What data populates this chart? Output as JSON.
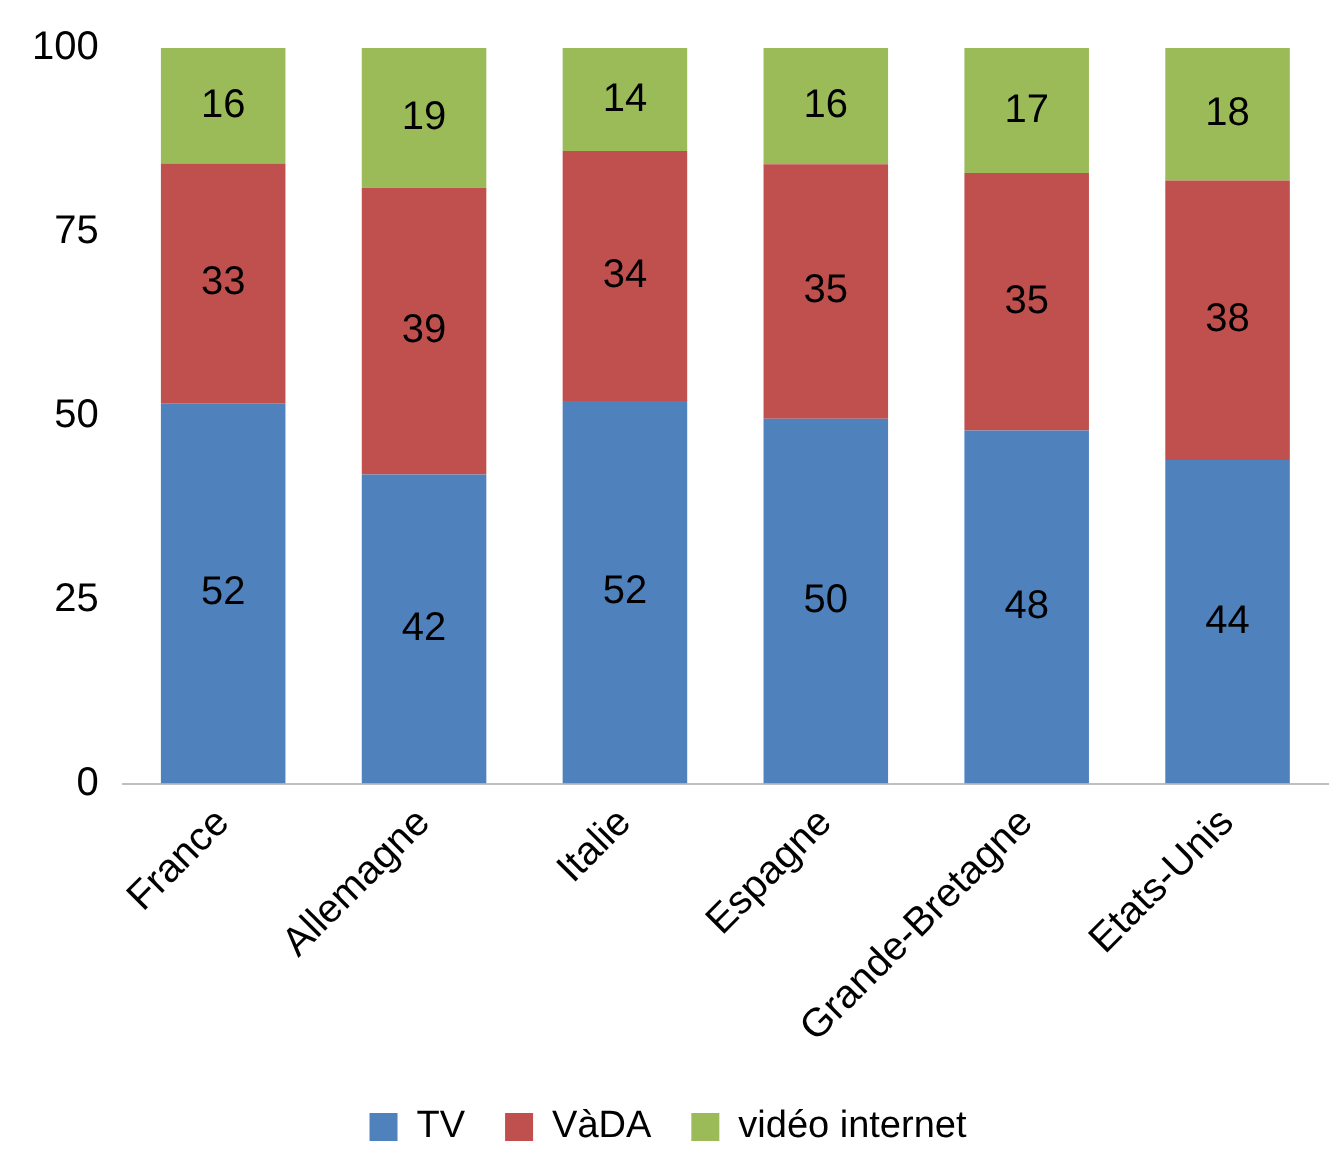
{
  "chart_data": {
    "type": "bar",
    "stacked": true,
    "categories": [
      "France",
      "Allemagne",
      "Italie",
      "Espagne",
      "Grande-Bretagne",
      "Etats-Unis"
    ],
    "series": [
      {
        "name": "TV",
        "color": "#4f81bd",
        "values": [
          51.7,
          42,
          52,
          49.6,
          48,
          44
        ],
        "value_labels": [
          "52",
          "42",
          "52",
          "50",
          "48",
          "44"
        ]
      },
      {
        "name": "VàDA",
        "color": "#c0504d",
        "values": [
          32.6,
          39,
          34,
          34.6,
          35,
          38
        ],
        "value_labels": [
          "33",
          "39",
          "34",
          "35",
          "35",
          "38"
        ]
      },
      {
        "name": "vidéo internet",
        "color": "#9bbb59",
        "values": [
          15.7,
          19,
          14,
          15.8,
          17,
          18
        ],
        "value_labels": [
          "16",
          "19",
          "14",
          "16",
          "17",
          "18"
        ]
      }
    ],
    "ylim": [
      0,
      100
    ],
    "yticks": [
      0,
      25,
      50,
      75,
      100
    ],
    "grid": false,
    "legend": "bottom"
  }
}
